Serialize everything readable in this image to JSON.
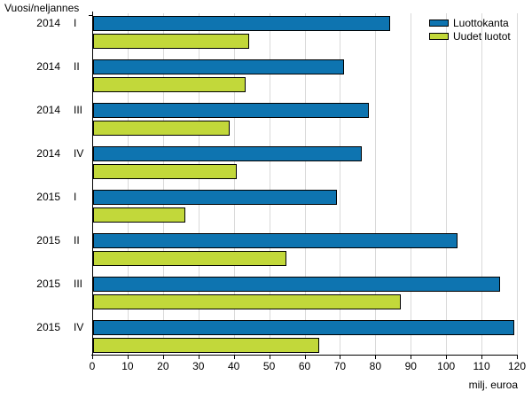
{
  "chart_data": {
    "type": "bar",
    "orientation": "horizontal",
    "y_axis_title": "Vuosi/neljannes",
    "xlabel": "milj. euroa",
    "xlim": [
      0,
      120
    ],
    "x_ticks": [
      0,
      10,
      20,
      30,
      40,
      50,
      60,
      70,
      80,
      90,
      100,
      110,
      120
    ],
    "grid": "vertical-only",
    "legend_position": "top-right-inside",
    "categories": [
      "2014 I",
      "2014 II",
      "2014 III",
      "2014 IV",
      "2015 I",
      "2015 II",
      "2015 III",
      "2015 IV"
    ],
    "categories_split": [
      {
        "year": "2014",
        "quarter": "I"
      },
      {
        "year": "2014",
        "quarter": "II"
      },
      {
        "year": "2014",
        "quarter": "III"
      },
      {
        "year": "2014",
        "quarter": "IV"
      },
      {
        "year": "2015",
        "quarter": "I"
      },
      {
        "year": "2015",
        "quarter": "II"
      },
      {
        "year": "2015",
        "quarter": "III"
      },
      {
        "year": "2015",
        "quarter": "IV"
      }
    ],
    "series": [
      {
        "name": "Luottokanta",
        "color": "#0e74b0",
        "values": [
          84,
          71,
          78,
          76,
          69,
          103,
          115,
          119
        ]
      },
      {
        "name": "Uudet luotot",
        "color": "#c2d83a",
        "values": [
          44,
          43,
          38.5,
          40.5,
          26,
          54.5,
          87,
          64
        ]
      }
    ],
    "colors": {
      "axis": "#000000",
      "gridline": "#d9d9d9",
      "background": "#ffffff",
      "bar_border": "#000000"
    }
  }
}
